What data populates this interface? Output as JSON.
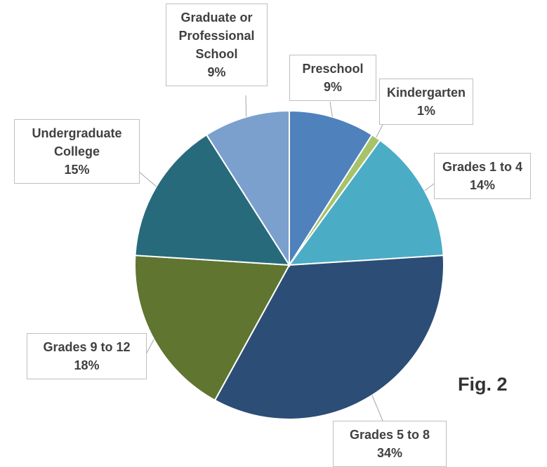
{
  "chart_data": {
    "type": "pie",
    "categories": [
      "Preschool",
      "Kindergarten",
      "Grades 1 to 4",
      "Grades 5 to 8",
      "Grades 9 to 12",
      "Undergraduate College",
      "Graduate or Professional School"
    ],
    "values": [
      9,
      1,
      14,
      34,
      18,
      15,
      9
    ],
    "value_labels": [
      "9%",
      "1%",
      "14%",
      "34%",
      "18%",
      "15%",
      "9%"
    ],
    "colors": [
      "#4f81bd",
      "#a6c36a",
      "#4bacc6",
      "#2c4d75",
      "#5f7530",
      "#276a7c",
      "#7ba0cd"
    ],
    "annotation": "Fig. 2"
  }
}
